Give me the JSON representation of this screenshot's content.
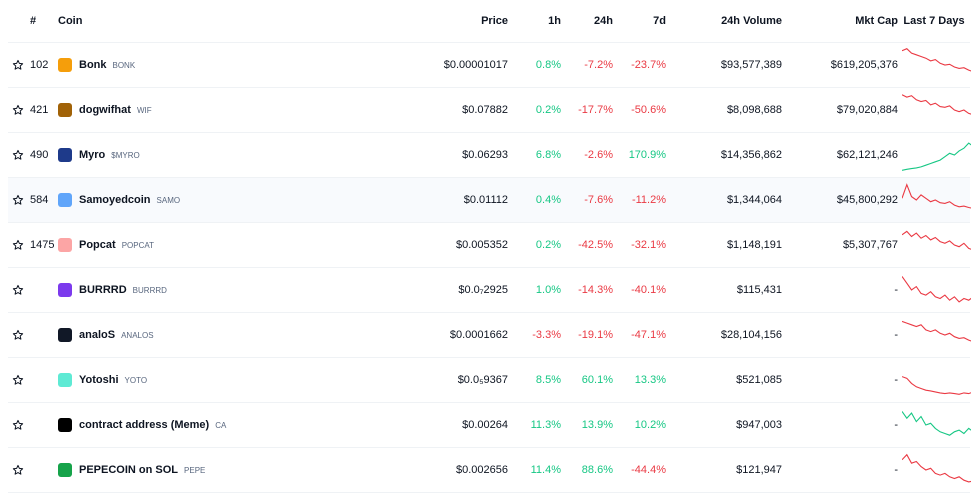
{
  "columns": {
    "rank": "#",
    "coin": "Coin",
    "price": "Price",
    "h1": "1h",
    "h24": "24h",
    "d7": "7d",
    "volume": "24h Volume",
    "mcap": "Mkt Cap",
    "spark": "Last 7 Days"
  },
  "colors": {
    "up": "#16c784",
    "down": "#ea3943"
  },
  "rows": [
    {
      "rank": "102",
      "name": "Bonk",
      "symbol": "BONK",
      "price": "$0.00001017",
      "h1": "0.8%",
      "h24": "-7.2%",
      "d7": "-23.7%",
      "volume": "$93,577,389",
      "mcap": "$619,205,376",
      "logo_color": "#f59e0b",
      "spark_trend": "down",
      "spark": [
        0.92,
        0.98,
        0.85,
        0.8,
        0.75,
        0.7,
        0.62,
        0.66,
        0.55,
        0.5,
        0.52,
        0.44,
        0.4,
        0.42,
        0.35,
        0.3,
        0.32,
        0.25,
        0.18,
        0.2,
        0.12,
        0.08
      ]
    },
    {
      "rank": "421",
      "name": "dogwifhat",
      "symbol": "WIF",
      "price": "$0.07882",
      "h1": "0.2%",
      "h24": "-17.7%",
      "d7": "-50.6%",
      "volume": "$8,098,688",
      "mcap": "$79,020,884",
      "logo_color": "#a16207",
      "spark_trend": "down",
      "spark": [
        0.95,
        0.88,
        0.92,
        0.8,
        0.75,
        0.78,
        0.65,
        0.7,
        0.6,
        0.58,
        0.62,
        0.5,
        0.45,
        0.5,
        0.4,
        0.36,
        0.38,
        0.3,
        0.25,
        0.2,
        0.12,
        0.05
      ]
    },
    {
      "rank": "490",
      "name": "Myro",
      "symbol": "$MYRO",
      "price": "$0.06293",
      "h1": "6.8%",
      "h24": "-2.6%",
      "d7": "170.9%",
      "volume": "$14,356,862",
      "mcap": "$62,121,246",
      "logo_color": "#1e3a8a",
      "spark_trend": "up",
      "spark": [
        0.05,
        0.08,
        0.1,
        0.12,
        0.15,
        0.2,
        0.25,
        0.3,
        0.35,
        0.45,
        0.55,
        0.5,
        0.62,
        0.7,
        0.85,
        0.75,
        0.9,
        0.72,
        0.65,
        0.6,
        0.55,
        0.58
      ]
    },
    {
      "rank": "584",
      "name": "Samoyedcoin",
      "symbol": "SAMO",
      "price": "$0.01112",
      "h1": "0.4%",
      "h24": "-7.6%",
      "d7": "-11.2%",
      "volume": "$1,344,064",
      "mcap": "$45,800,292",
      "logo_color": "#60a5fa",
      "spark_trend": "down",
      "spark": [
        0.55,
        0.95,
        0.6,
        0.5,
        0.65,
        0.55,
        0.45,
        0.5,
        0.42,
        0.4,
        0.45,
        0.35,
        0.3,
        0.32,
        0.28,
        0.25,
        0.2,
        0.22,
        0.18,
        0.15,
        0.1,
        0.05
      ],
      "highlight": true
    },
    {
      "rank": "1475",
      "name": "Popcat",
      "symbol": "POPCAT",
      "price": "$0.005352",
      "h1": "0.2%",
      "h24": "-42.5%",
      "d7": "-32.1%",
      "volume": "$1,148,191",
      "mcap": "$5,307,767",
      "logo_color": "#fca5a5",
      "spark_trend": "down",
      "spark": [
        0.8,
        0.9,
        0.75,
        0.85,
        0.7,
        0.78,
        0.65,
        0.72,
        0.6,
        0.55,
        0.62,
        0.5,
        0.45,
        0.55,
        0.4,
        0.35,
        0.4,
        0.3,
        0.25,
        0.75,
        0.2,
        0.1
      ]
    },
    {
      "rank": "",
      "name": "BURRRD",
      "symbol": "BURRRD",
      "price": "$0.0₇2925",
      "h1": "1.0%",
      "h24": "-14.3%",
      "d7": "-40.1%",
      "volume": "$115,431",
      "mcap": "-",
      "logo_color": "#7c3aed",
      "spark_trend": "down",
      "spark": [
        0.9,
        0.7,
        0.5,
        0.6,
        0.4,
        0.35,
        0.45,
        0.3,
        0.25,
        0.35,
        0.2,
        0.3,
        0.15,
        0.25,
        0.2,
        0.3,
        0.25,
        0.35,
        0.4,
        0.3,
        0.45,
        0.35
      ]
    },
    {
      "rank": "",
      "name": "analoS",
      "symbol": "ANALOS",
      "price": "$0.0001662",
      "h1": "-3.3%",
      "h24": "-19.1%",
      "d7": "-47.1%",
      "volume": "$28,104,156",
      "mcap": "-",
      "logo_color": "#111827",
      "spark_trend": "down",
      "spark": [
        0.9,
        0.85,
        0.8,
        0.75,
        0.8,
        0.65,
        0.6,
        0.65,
        0.55,
        0.5,
        0.55,
        0.45,
        0.4,
        0.42,
        0.35,
        0.3,
        0.35,
        0.25,
        0.3,
        0.2,
        0.25,
        0.2
      ]
    },
    {
      "rank": "",
      "name": "Yotoshi",
      "symbol": "YOTO",
      "price": "$0.0₅9367",
      "h1": "8.5%",
      "h24": "60.1%",
      "d7": "13.3%",
      "volume": "$521,085",
      "mcap": "-",
      "logo_color": "#5eead4",
      "spark_trend": "down",
      "spark": [
        0.6,
        0.55,
        0.4,
        0.3,
        0.25,
        0.2,
        0.18,
        0.15,
        0.12,
        0.1,
        0.12,
        0.1,
        0.08,
        0.12,
        0.1,
        0.15,
        0.12,
        0.2,
        0.3,
        0.6,
        0.95,
        0.5
      ]
    },
    {
      "rank": "",
      "name": "contract address (Meme)",
      "symbol": "CA",
      "price": "$0.00264",
      "h1": "11.3%",
      "h24": "13.9%",
      "d7": "10.2%",
      "volume": "$947,003",
      "mcap": "-",
      "logo_color": "#000000",
      "spark_trend": "up",
      "spark": [
        0.9,
        0.7,
        0.85,
        0.6,
        0.75,
        0.5,
        0.55,
        0.4,
        0.3,
        0.25,
        0.2,
        0.3,
        0.35,
        0.25,
        0.4,
        0.3,
        0.45,
        0.35,
        0.5,
        0.4,
        0.55,
        0.6
      ]
    },
    {
      "rank": "",
      "name": "PEPECOIN on SOL",
      "symbol": "PEPE",
      "price": "$0.002656",
      "h1": "11.4%",
      "h24": "88.6%",
      "d7": "-44.4%",
      "volume": "$121,947",
      "mcap": "-",
      "logo_color": "#16a34a",
      "spark_trend": "down",
      "spark": [
        0.8,
        0.95,
        0.7,
        0.75,
        0.6,
        0.5,
        0.55,
        0.4,
        0.35,
        0.4,
        0.3,
        0.25,
        0.3,
        0.2,
        0.15,
        0.18,
        0.1,
        0.12,
        0.08,
        0.1,
        0.15,
        0.12
      ]
    }
  ]
}
